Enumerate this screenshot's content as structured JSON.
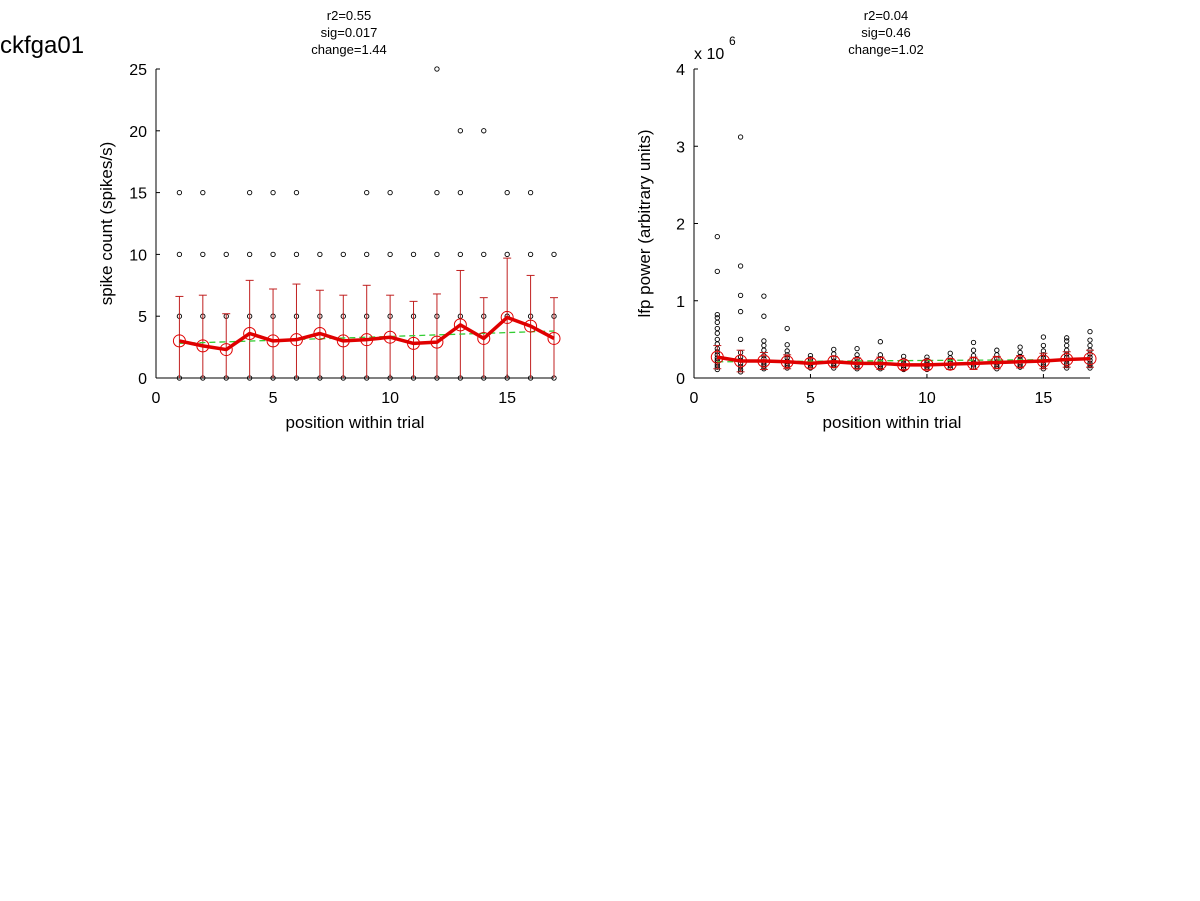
{
  "figure_title": "ckfga01",
  "colors": {
    "mean_line": "#e00000",
    "error_bar": "#c02020",
    "fit_line": "#33cc33",
    "points": "#000000"
  },
  "chart_data": [
    {
      "type": "scatter",
      "stats": [
        "r2=0.55",
        "sig=0.017",
        "change=1.44"
      ],
      "xlabel": "position within trial",
      "ylabel": "spike count (spikes/s)",
      "xlim": [
        0,
        17
      ],
      "ylim": [
        0,
        25
      ],
      "xticks": [
        0,
        5,
        10,
        15
      ],
      "yticks": [
        0,
        5,
        10,
        15,
        20,
        25
      ],
      "exponent_label": "",
      "x": [
        1,
        2,
        3,
        4,
        5,
        6,
        7,
        8,
        9,
        10,
        11,
        12,
        13,
        14,
        15,
        16,
        17
      ],
      "mean": [
        3.0,
        2.6,
        2.3,
        3.6,
        3.0,
        3.1,
        3.6,
        3.0,
        3.1,
        3.3,
        2.8,
        2.9,
        4.3,
        3.2,
        4.9,
        4.2,
        3.2
      ],
      "err_upper": [
        6.6,
        6.7,
        5.2,
        7.9,
        7.2,
        7.6,
        7.1,
        6.7,
        7.5,
        6.7,
        6.2,
        6.8,
        8.7,
        6.5,
        9.7,
        8.3,
        6.5
      ],
      "err_lower": [
        0,
        0,
        0,
        0,
        0,
        0,
        0,
        0,
        0,
        0,
        0,
        0,
        0,
        0,
        0,
        0,
        0
      ],
      "fit": [
        [
          1,
          2.8
        ],
        [
          17,
          3.8
        ]
      ],
      "points": [
        [
          1,
          0
        ],
        [
          1,
          5
        ],
        [
          1,
          10
        ],
        [
          1,
          15
        ],
        [
          2,
          0
        ],
        [
          2,
          5
        ],
        [
          2,
          10
        ],
        [
          2,
          15
        ],
        [
          3,
          0
        ],
        [
          3,
          5
        ],
        [
          3,
          10
        ],
        [
          4,
          0
        ],
        [
          4,
          5
        ],
        [
          4,
          10
        ],
        [
          4,
          15
        ],
        [
          5,
          0
        ],
        [
          5,
          5
        ],
        [
          5,
          10
        ],
        [
          5,
          15
        ],
        [
          6,
          0
        ],
        [
          6,
          5
        ],
        [
          6,
          10
        ],
        [
          6,
          15
        ],
        [
          7,
          0
        ],
        [
          7,
          5
        ],
        [
          7,
          10
        ],
        [
          8,
          0
        ],
        [
          8,
          5
        ],
        [
          8,
          10
        ],
        [
          9,
          0
        ],
        [
          9,
          5
        ],
        [
          9,
          10
        ],
        [
          9,
          15
        ],
        [
          10,
          0
        ],
        [
          10,
          5
        ],
        [
          10,
          10
        ],
        [
          10,
          15
        ],
        [
          11,
          0
        ],
        [
          11,
          5
        ],
        [
          11,
          10
        ],
        [
          12,
          0
        ],
        [
          12,
          5
        ],
        [
          12,
          10
        ],
        [
          12,
          15
        ],
        [
          12,
          25
        ],
        [
          13,
          0
        ],
        [
          13,
          5
        ],
        [
          13,
          10
        ],
        [
          13,
          15
        ],
        [
          13,
          20
        ],
        [
          14,
          0
        ],
        [
          14,
          5
        ],
        [
          14,
          10
        ],
        [
          14,
          20
        ],
        [
          15,
          0
        ],
        [
          15,
          5
        ],
        [
          15,
          10
        ],
        [
          15,
          15
        ],
        [
          16,
          0
        ],
        [
          16,
          5
        ],
        [
          16,
          10
        ],
        [
          16,
          15
        ],
        [
          17,
          0
        ],
        [
          17,
          5
        ],
        [
          17,
          10
        ]
      ]
    },
    {
      "type": "scatter",
      "stats": [
        "r2=0.04",
        "sig=0.46",
        "change=1.02"
      ],
      "xlabel": "position within trial",
      "ylabel": "lfp power (arbitrary units)",
      "xlim": [
        0,
        17
      ],
      "ylim": [
        0,
        4
      ],
      "xticks": [
        0,
        5,
        10,
        15
      ],
      "yticks": [
        0,
        1,
        2,
        3,
        4
      ],
      "exponent_label": "x 10",
      "exponent_power": "6",
      "x": [
        1,
        2,
        3,
        4,
        5,
        6,
        7,
        8,
        9,
        10,
        11,
        12,
        13,
        14,
        15,
        16,
        17
      ],
      "mean": [
        0.27,
        0.22,
        0.22,
        0.21,
        0.19,
        0.21,
        0.19,
        0.19,
        0.17,
        0.17,
        0.18,
        0.19,
        0.2,
        0.21,
        0.22,
        0.24,
        0.25
      ],
      "err_upper": [
        0.42,
        0.36,
        0.33,
        0.3,
        0.25,
        0.28,
        0.26,
        0.27,
        0.23,
        0.23,
        0.25,
        0.27,
        0.28,
        0.29,
        0.32,
        0.34,
        0.36
      ],
      "err_lower": [
        0.12,
        0.08,
        0.11,
        0.12,
        0.13,
        0.14,
        0.12,
        0.11,
        0.11,
        0.11,
        0.11,
        0.11,
        0.12,
        0.13,
        0.12,
        0.14,
        0.14
      ],
      "fit": [
        [
          1,
          0.21
        ],
        [
          17,
          0.24
        ]
      ],
      "points": [
        [
          1,
          1.83
        ],
        [
          1,
          1.38
        ],
        [
          1,
          0.82
        ],
        [
          1,
          0.78
        ],
        [
          1,
          0.72
        ],
        [
          1,
          0.64
        ],
        [
          1,
          0.58
        ],
        [
          1,
          0.5
        ],
        [
          1,
          0.44
        ],
        [
          1,
          0.38
        ],
        [
          1,
          0.34
        ],
        [
          1,
          0.3
        ],
        [
          1,
          0.26
        ],
        [
          1,
          0.23
        ],
        [
          1,
          0.2
        ],
        [
          1,
          0.17
        ],
        [
          1,
          0.14
        ],
        [
          1,
          0.11
        ],
        [
          2,
          3.12
        ],
        [
          2,
          1.45
        ],
        [
          2,
          1.07
        ],
        [
          2,
          0.86
        ],
        [
          2,
          0.5
        ],
        [
          2,
          0.33
        ],
        [
          2,
          0.27
        ],
        [
          2,
          0.23
        ],
        [
          2,
          0.19
        ],
        [
          2,
          0.15
        ],
        [
          2,
          0.11
        ],
        [
          2,
          0.08
        ],
        [
          3,
          1.06
        ],
        [
          3,
          0.8
        ],
        [
          3,
          0.48
        ],
        [
          3,
          0.42
        ],
        [
          3,
          0.36
        ],
        [
          3,
          0.29
        ],
        [
          3,
          0.25
        ],
        [
          3,
          0.21
        ],
        [
          3,
          0.18
        ],
        [
          3,
          0.15
        ],
        [
          3,
          0.12
        ],
        [
          4,
          0.64
        ],
        [
          4,
          0.43
        ],
        [
          4,
          0.35
        ],
        [
          4,
          0.3
        ],
        [
          4,
          0.26
        ],
        [
          4,
          0.22
        ],
        [
          4,
          0.19
        ],
        [
          4,
          0.16
        ],
        [
          4,
          0.13
        ],
        [
          5,
          0.29
        ],
        [
          5,
          0.25
        ],
        [
          5,
          0.22
        ],
        [
          5,
          0.19
        ],
        [
          5,
          0.16
        ],
        [
          5,
          0.13
        ],
        [
          6,
          0.37
        ],
        [
          6,
          0.31
        ],
        [
          6,
          0.26
        ],
        [
          6,
          0.22
        ],
        [
          6,
          0.19
        ],
        [
          6,
          0.16
        ],
        [
          6,
          0.13
        ],
        [
          7,
          0.38
        ],
        [
          7,
          0.3
        ],
        [
          7,
          0.25
        ],
        [
          7,
          0.21
        ],
        [
          7,
          0.18
        ],
        [
          7,
          0.15
        ],
        [
          7,
          0.12
        ],
        [
          8,
          0.47
        ],
        [
          8,
          0.3
        ],
        [
          8,
          0.25
        ],
        [
          8,
          0.21
        ],
        [
          8,
          0.18
        ],
        [
          8,
          0.15
        ],
        [
          8,
          0.12
        ],
        [
          9,
          0.28
        ],
        [
          9,
          0.23
        ],
        [
          9,
          0.19
        ],
        [
          9,
          0.16
        ],
        [
          9,
          0.13
        ],
        [
          9,
          0.11
        ],
        [
          10,
          0.27
        ],
        [
          10,
          0.23
        ],
        [
          10,
          0.2
        ],
        [
          10,
          0.17
        ],
        [
          10,
          0.14
        ],
        [
          10,
          0.11
        ],
        [
          11,
          0.32
        ],
        [
          11,
          0.26
        ],
        [
          11,
          0.22
        ],
        [
          11,
          0.19
        ],
        [
          11,
          0.16
        ],
        [
          11,
          0.13
        ],
        [
          12,
          0.46
        ],
        [
          12,
          0.36
        ],
        [
          12,
          0.29
        ],
        [
          12,
          0.24
        ],
        [
          12,
          0.2
        ],
        [
          12,
          0.17
        ],
        [
          12,
          0.14
        ],
        [
          13,
          0.36
        ],
        [
          13,
          0.3
        ],
        [
          13,
          0.25
        ],
        [
          13,
          0.21
        ],
        [
          13,
          0.18
        ],
        [
          13,
          0.15
        ],
        [
          13,
          0.12
        ],
        [
          14,
          0.4
        ],
        [
          14,
          0.33
        ],
        [
          14,
          0.28
        ],
        [
          14,
          0.24
        ],
        [
          14,
          0.2
        ],
        [
          14,
          0.17
        ],
        [
          14,
          0.14
        ],
        [
          15,
          0.53
        ],
        [
          15,
          0.42
        ],
        [
          15,
          0.35
        ],
        [
          15,
          0.3
        ],
        [
          15,
          0.26
        ],
        [
          15,
          0.22
        ],
        [
          15,
          0.18
        ],
        [
          15,
          0.15
        ],
        [
          15,
          0.12
        ],
        [
          16,
          0.52
        ],
        [
          16,
          0.48
        ],
        [
          16,
          0.42
        ],
        [
          16,
          0.36
        ],
        [
          16,
          0.31
        ],
        [
          16,
          0.27
        ],
        [
          16,
          0.23
        ],
        [
          16,
          0.19
        ],
        [
          16,
          0.16
        ],
        [
          16,
          0.13
        ],
        [
          17,
          0.6
        ],
        [
          17,
          0.49
        ],
        [
          17,
          0.42
        ],
        [
          17,
          0.36
        ],
        [
          17,
          0.31
        ],
        [
          17,
          0.27
        ],
        [
          17,
          0.23
        ],
        [
          17,
          0.19
        ],
        [
          17,
          0.16
        ],
        [
          17,
          0.13
        ]
      ]
    }
  ]
}
